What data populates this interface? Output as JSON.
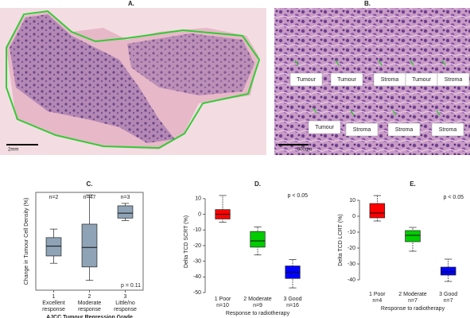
{
  "panels": {
    "A": {
      "label": "A.",
      "scale": "2mm"
    },
    "B": {
      "label": "B.",
      "scale": "300um",
      "labels": [
        "Tumour",
        "Tumour",
        "Stroma",
        "Tumour",
        "Stroma",
        "Tumour",
        "Stroma",
        "Stroma",
        "Stroma"
      ]
    }
  },
  "chart_data": [
    {
      "type": "box",
      "title": "C.",
      "ylabel": "Change in Tumour Cell Density (%)",
      "xlabel": "AJCC Tumour Regression Grade",
      "categories": [
        [
          "1",
          "Excellent",
          "response"
        ],
        [
          "2",
          "Moderate",
          "response"
        ],
        [
          "3",
          "Little/no",
          "response"
        ]
      ],
      "counts": [
        "n=2",
        "n=47",
        "n=3"
      ],
      "p_value": "p = 0.11",
      "p_corner": "bottom-right",
      "colors": [
        "#8fa3b6",
        "#8fa3b6",
        "#8fa3b6"
      ],
      "boxes": [
        {
          "min": -38,
          "q1": -32,
          "median": -24,
          "q3": -17,
          "max": -10
        },
        {
          "min": -52,
          "q1": -41,
          "median": -25,
          "q3": -6,
          "max": 18
        },
        {
          "min": -3,
          "q1": -1,
          "median": 3,
          "q3": 9,
          "max": 11
        }
      ],
      "ylim": [
        -60,
        20
      ],
      "frame": "box"
    },
    {
      "type": "box",
      "title": "D.",
      "ylabel": "Delta TCD SCRT (%)",
      "xlabel": "Response to radiotherapy",
      "categories": [
        [
          "1 Poor",
          "n=10"
        ],
        [
          "2 Moderate",
          "n=9"
        ],
        [
          "3 Good",
          "n=16"
        ]
      ],
      "p_value": "p < 0.05",
      "p_corner": "top-right",
      "colors": [
        "#ff0000",
        "#00cc00",
        "#0000ff"
      ],
      "boxes": [
        {
          "min": -5,
          "q1": -3,
          "median": 0,
          "q3": 3,
          "max": 12
        },
        {
          "min": -26,
          "q1": -21,
          "median": -17,
          "q3": -11,
          "max": -8
        },
        {
          "min": -47,
          "q1": -41,
          "median": -37,
          "q3": -33,
          "max": -29
        }
      ],
      "ylim": [
        -50,
        15
      ],
      "yticks": [
        10,
        0,
        -10,
        -20,
        -30,
        -40,
        -50
      ],
      "frame": "left"
    },
    {
      "type": "box",
      "title": "E.",
      "ylabel": "Delta TCD LCRT (%)",
      "xlabel": "Response to radiotherapy",
      "categories": [
        [
          "1 Poor",
          "n=4"
        ],
        [
          "2 Moderate",
          "n=7"
        ],
        [
          "3 Good",
          "n=7"
        ]
      ],
      "p_value": "p < 0.05",
      "p_corner": "top-right",
      "colors": [
        "#ff0000",
        "#00cc00",
        "#0000ff"
      ],
      "boxes": [
        {
          "min": -3,
          "q1": -1,
          "median": 2,
          "q3": 8,
          "max": 13
        },
        {
          "min": -22,
          "q1": -16,
          "median": -12,
          "q3": -9,
          "max": -7
        },
        {
          "min": -41,
          "q1": -37,
          "median": -35,
          "q3": -32,
          "max": -27
        }
      ],
      "ylim": [
        -45,
        15
      ],
      "yticks": [
        10,
        0,
        -10,
        -20,
        -30,
        -40
      ],
      "frame": "left"
    }
  ]
}
